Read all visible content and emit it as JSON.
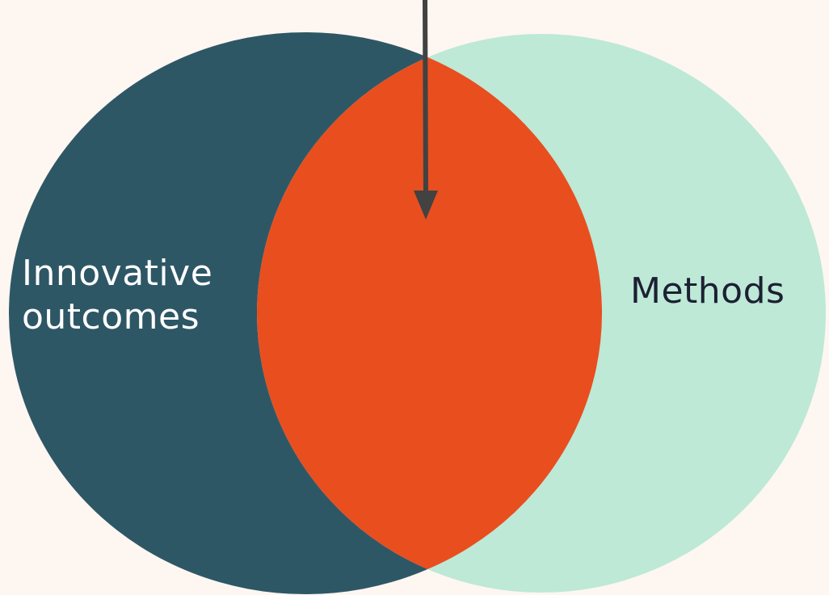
{
  "diagram": {
    "type": "venn",
    "left_set": {
      "label_line1": "Innovative",
      "label_line2": "outcomes",
      "fill": "#2e5766",
      "text_color": "#ffffff"
    },
    "right_set": {
      "label": "Methods",
      "fill": "#bde9d6",
      "text_color": "#1c2033"
    },
    "intersection": {
      "fill": "#e94e1f"
    },
    "arrow": {
      "color": "#424242",
      "points_to": "intersection"
    },
    "background": "#fdf6f1"
  }
}
